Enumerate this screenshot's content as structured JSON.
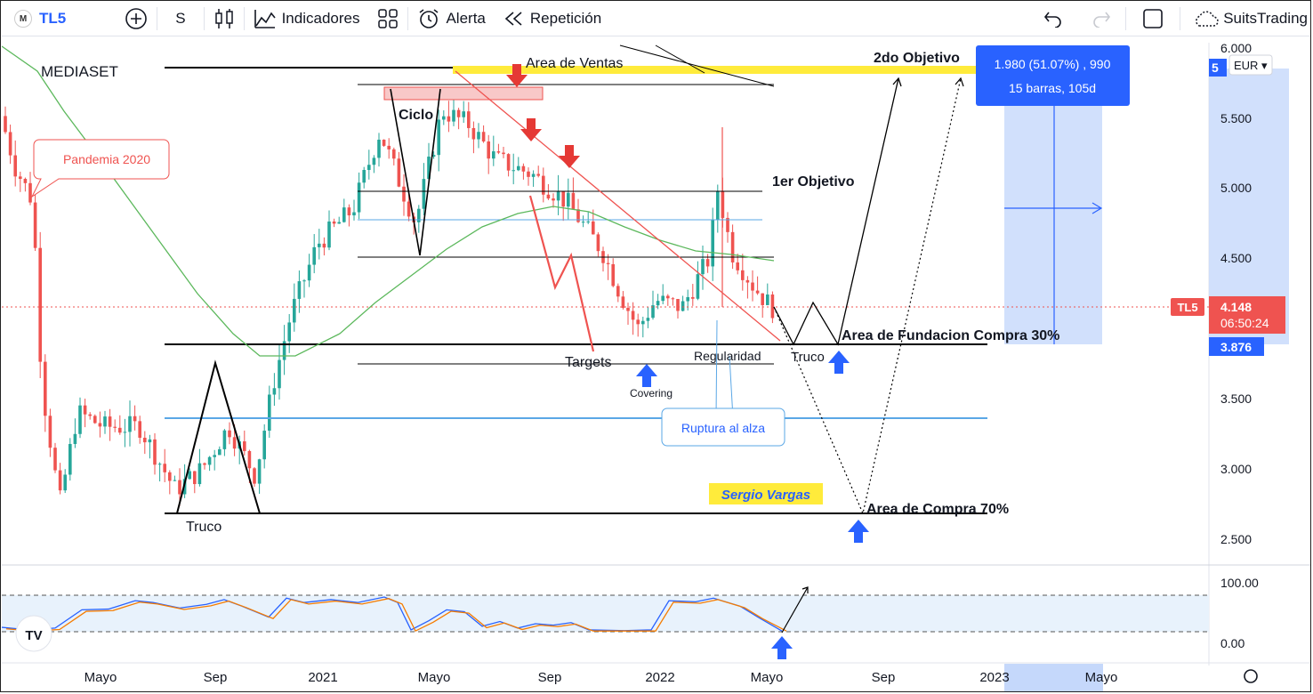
{
  "toolbar": {
    "symbol": "TL5",
    "interval": "S",
    "indicators_label": "Indicadores",
    "alert_label": "Alerta",
    "replay_label": "Repetición",
    "account_label": "SuitsTrading"
  },
  "chart": {
    "instrument_label": "MEDIASET",
    "currency": "EUR",
    "last_price": "4.148",
    "countdown": "06:50:24",
    "symbol_tag": "TL5",
    "crosshair_price": "3.876",
    "partial_top_tick": "5",
    "price_ticks": [
      "6.000",
      "5.500",
      "5.000",
      "4.500",
      "3.500",
      "3.000",
      "2.500"
    ],
    "osc_ticks": [
      "100.00",
      "0.00"
    ],
    "time_ticks": [
      "Mayo",
      "Sep",
      "2021",
      "Mayo",
      "Sep",
      "2022",
      "Mayo",
      "Sep",
      "2023",
      "Mayo"
    ],
    "measure_line1": "1.980 (51.07%) , 990",
    "measure_line2": "15 barras, 105d",
    "colors": {
      "bull": "#26a69a",
      "bear": "#ef5350",
      "measure": "#2962ff",
      "highlight": "#ffeb3b"
    }
  },
  "annotations": {
    "pandemic": "Pandemia 2020",
    "sell_area": "Area de Ventas",
    "cycle": "Ciclo",
    "objective2": "2do Objetivo",
    "objective1": "1er Objetivo",
    "targets": "Targets",
    "covering": "Covering",
    "regularity": "Regularidad",
    "trick1": "Truco",
    "trick2": "Truco",
    "foundation_area": "Area de Fundacion Compra 30%",
    "breakout": "Ruptura al alza",
    "author": "Sergio Vargas",
    "buy_area": "Area de Compra 70%"
  }
}
